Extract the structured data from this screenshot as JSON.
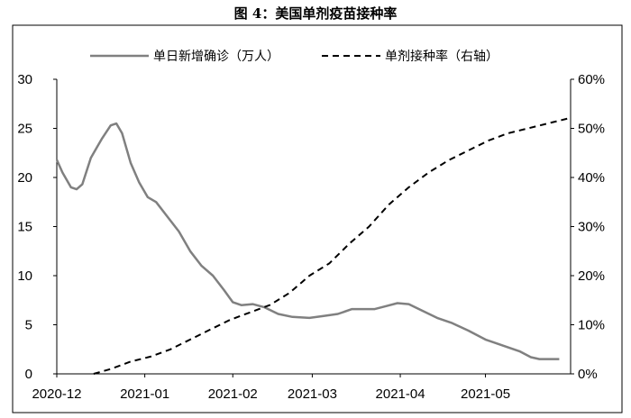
{
  "chart_data": {
    "type": "line",
    "title": "图 4：美国单剂疫苗接种率",
    "x_ticks": [
      "2020-12",
      "2021-01",
      "2021-02",
      "2021-03",
      "2021-04",
      "2021-05"
    ],
    "y_left": {
      "range": [
        0,
        30
      ],
      "ticks": [
        "0",
        "5",
        "10",
        "15",
        "20",
        "25",
        "30"
      ]
    },
    "y_right": {
      "range": [
        0,
        0.6
      ],
      "ticks": [
        "0%",
        "10%",
        "20%",
        "30%",
        "40%",
        "50%",
        "60%"
      ]
    },
    "grid": false,
    "legend": {
      "position": "top",
      "entries": [
        "单日新增确诊（万人）",
        "单剂接种率（右轴）"
      ]
    },
    "series": [
      {
        "name": "单日新增确诊（万人）",
        "axis": "left",
        "style": "solid",
        "color": "#808080",
        "x": [
          "2020-12-01",
          "2020-12-03",
          "2020-12-06",
          "2020-12-08",
          "2020-12-10",
          "2020-12-13",
          "2020-12-15",
          "2020-12-17",
          "2020-12-20",
          "2020-12-22",
          "2020-12-24",
          "2020-12-27",
          "2020-12-30",
          "2021-01-02",
          "2021-01-05",
          "2021-01-09",
          "2021-01-13",
          "2021-01-17",
          "2021-01-21",
          "2021-01-25",
          "2021-01-29",
          "2021-02-01",
          "2021-02-04",
          "2021-02-08",
          "2021-02-12",
          "2021-02-17",
          "2021-02-22",
          "2021-02-28",
          "2021-03-05",
          "2021-03-10",
          "2021-03-15",
          "2021-03-20",
          "2021-03-23",
          "2021-03-27",
          "2021-03-31",
          "2021-04-04",
          "2021-04-09",
          "2021-04-14",
          "2021-04-19",
          "2021-04-25",
          "2021-05-01",
          "2021-05-07",
          "2021-05-13",
          "2021-05-17",
          "2021-05-20",
          "2021-05-24",
          "2021-05-27"
        ],
        "values": [
          21.8,
          20.5,
          19,
          18.8,
          19.3,
          22,
          23,
          24,
          25.3,
          25.5,
          24.5,
          21.5,
          19.5,
          18,
          17.5,
          16,
          14.5,
          12.5,
          11,
          10,
          8.5,
          7.3,
          7,
          7.1,
          6.8,
          6.1,
          5.8,
          5.7,
          5.9,
          6.1,
          6.6,
          6.6,
          6.6,
          6.9,
          7.2,
          7.1,
          6.4,
          5.7,
          5.2,
          4.4,
          3.5,
          2.9,
          2.3,
          1.7,
          1.5,
          1.5,
          1.5
        ]
      },
      {
        "name": "单剂接种率（右轴）",
        "axis": "right",
        "style": "dashed",
        "color": "#000000",
        "x": [
          "2020-12-14",
          "2020-12-20",
          "2020-12-27",
          "2021-01-03",
          "2021-01-10",
          "2021-01-17",
          "2021-01-24",
          "2021-01-31",
          "2021-02-07",
          "2021-02-14",
          "2021-02-21",
          "2021-02-28",
          "2021-03-07",
          "2021-03-14",
          "2021-03-21",
          "2021-03-28",
          "2021-04-04",
          "2021-04-11",
          "2021-04-18",
          "2021-04-25",
          "2021-05-02",
          "2021-05-09",
          "2021-05-16",
          "2021-05-23",
          "2021-05-30"
        ],
        "values": [
          0,
          0.01,
          0.025,
          0.035,
          0.05,
          0.07,
          0.09,
          0.11,
          0.125,
          0.14,
          0.165,
          0.2,
          0.225,
          0.265,
          0.3,
          0.345,
          0.38,
          0.41,
          0.435,
          0.455,
          0.475,
          0.49,
          0.5,
          0.51,
          0.52
        ]
      }
    ]
  }
}
